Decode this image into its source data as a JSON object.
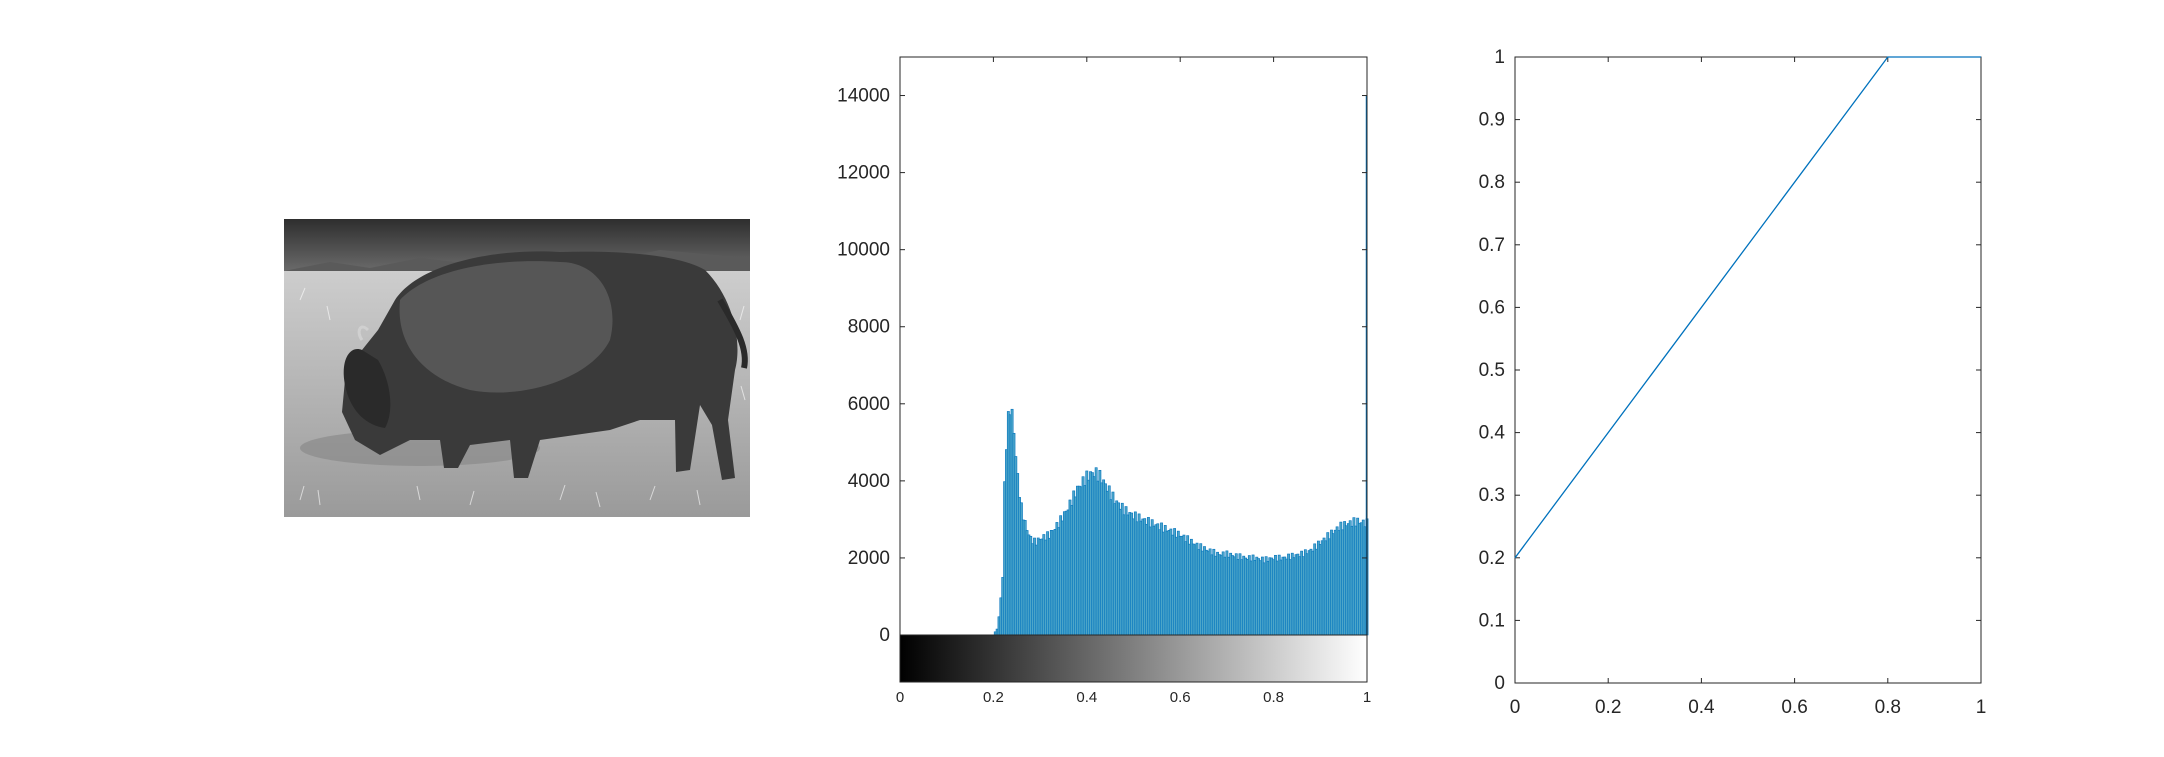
{
  "image_panel": {
    "description_icon": "bison-grayscale-photo",
    "tones": {
      "sky": "#3a3a3a",
      "grass": "#c8c8c8",
      "body": "#3c3c3c",
      "ground": "#b0b0b0"
    }
  },
  "colors": {
    "series": "#0072bd",
    "bar_fill": "#4da6c9",
    "axis": "#262626",
    "background": "#ffffff"
  },
  "chart_data": [
    {
      "type": "bar",
      "chart": "histogram",
      "x": [
        0.2,
        0.21,
        0.22,
        0.225,
        0.23,
        0.235,
        0.24,
        0.245,
        0.25,
        0.26,
        0.27,
        0.28,
        0.29,
        0.3,
        0.32,
        0.34,
        0.36,
        0.38,
        0.4,
        0.41,
        0.42,
        0.43,
        0.44,
        0.46,
        0.48,
        0.5,
        0.52,
        0.54,
        0.56,
        0.58,
        0.6,
        0.62,
        0.64,
        0.66,
        0.68,
        0.7,
        0.72,
        0.74,
        0.76,
        0.78,
        0.8,
        0.82,
        0.84,
        0.86,
        0.88,
        0.9,
        0.92,
        0.94,
        0.96,
        0.98,
        1.0
      ],
      "values": [
        0,
        200,
        1500,
        4500,
        5300,
        6000,
        5700,
        5200,
        4300,
        3300,
        2800,
        2500,
        2400,
        2500,
        2600,
        2900,
        3300,
        3800,
        4100,
        4200,
        4200,
        4100,
        3900,
        3500,
        3250,
        3100,
        3000,
        2900,
        2800,
        2700,
        2600,
        2450,
        2300,
        2200,
        2100,
        2100,
        2050,
        2000,
        2000,
        1950,
        2000,
        2000,
        2050,
        2100,
        2200,
        2400,
        2600,
        2800,
        2900,
        2950,
        2900
      ],
      "xlim": [
        0,
        1
      ],
      "ylim": [
        0,
        15000
      ],
      "yticks": [
        "0",
        "2000",
        "4000",
        "6000",
        "8000",
        "10000",
        "12000",
        "14000"
      ],
      "xticks": [
        "0",
        "0.2",
        "0.4",
        "0.6",
        "0.8",
        "1"
      ],
      "colorbar": "gray",
      "grid": false,
      "box": true
    },
    {
      "type": "line",
      "x": [
        0,
        0.8,
        1
      ],
      "y": [
        0.2,
        1,
        1
      ],
      "xlim": [
        0,
        1
      ],
      "ylim": [
        0,
        1
      ],
      "xticks": [
        "0",
        "0.2",
        "0.4",
        "0.6",
        "0.8",
        "1"
      ],
      "yticks": [
        "0",
        "0.1",
        "0.2",
        "0.3",
        "0.4",
        "0.5",
        "0.6",
        "0.7",
        "0.8",
        "0.9",
        "1"
      ],
      "grid": false,
      "box": true
    }
  ]
}
